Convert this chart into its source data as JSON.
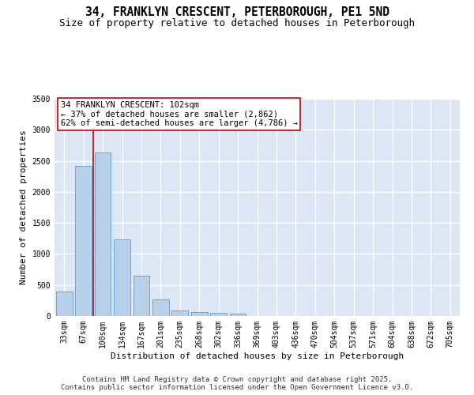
{
  "title_line1": "34, FRANKLYN CRESCENT, PETERBOROUGH, PE1 5ND",
  "title_line2": "Size of property relative to detached houses in Peterborough",
  "xlabel": "Distribution of detached houses by size in Peterborough",
  "ylabel": "Number of detached properties",
  "categories": [
    "33sqm",
    "67sqm",
    "100sqm",
    "134sqm",
    "167sqm",
    "201sqm",
    "235sqm",
    "268sqm",
    "302sqm",
    "336sqm",
    "369sqm",
    "403sqm",
    "436sqm",
    "470sqm",
    "504sqm",
    "537sqm",
    "571sqm",
    "604sqm",
    "638sqm",
    "672sqm",
    "705sqm"
  ],
  "values": [
    390,
    2420,
    2630,
    1240,
    650,
    270,
    90,
    60,
    55,
    40,
    0,
    0,
    0,
    0,
    0,
    0,
    0,
    0,
    0,
    0,
    0
  ],
  "bar_color": "#b8d0ea",
  "bar_edge_color": "#5b9bd5",
  "background_color": "#dce6f5",
  "grid_color": "#ffffff",
  "vline_color": "#cc0000",
  "vline_x": 1.5,
  "annotation_title": "34 FRANKLYN CRESCENT: 102sqm",
  "annotation_line2": "← 37% of detached houses are smaller (2,862)",
  "annotation_line3": "62% of semi-detached houses are larger (4,786) →",
  "annotation_box_color": "#cc0000",
  "annotation_bg": "#ffffff",
  "ylim_max": 3500,
  "yticks": [
    0,
    500,
    1000,
    1500,
    2000,
    2500,
    3000,
    3500
  ],
  "footer_line1": "Contains HM Land Registry data © Crown copyright and database right 2025.",
  "footer_line2": "Contains public sector information licensed under the Open Government Licence v3.0.",
  "title_fontsize": 10.5,
  "subtitle_fontsize": 9,
  "axis_label_fontsize": 8,
  "tick_fontsize": 7,
  "annotation_fontsize": 7.5,
  "footer_fontsize": 6.5
}
